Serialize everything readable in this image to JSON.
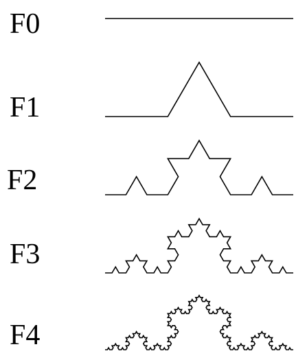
{
  "stages": [
    {
      "label": "F0",
      "iteration": 0
    },
    {
      "label": "F1",
      "iteration": 1
    },
    {
      "label": "F2",
      "iteration": 2
    },
    {
      "label": "F3",
      "iteration": 3
    },
    {
      "label": "F4",
      "iteration": 4
    }
  ],
  "colors": {
    "stroke": "#000000",
    "background": "#ffffff"
  }
}
